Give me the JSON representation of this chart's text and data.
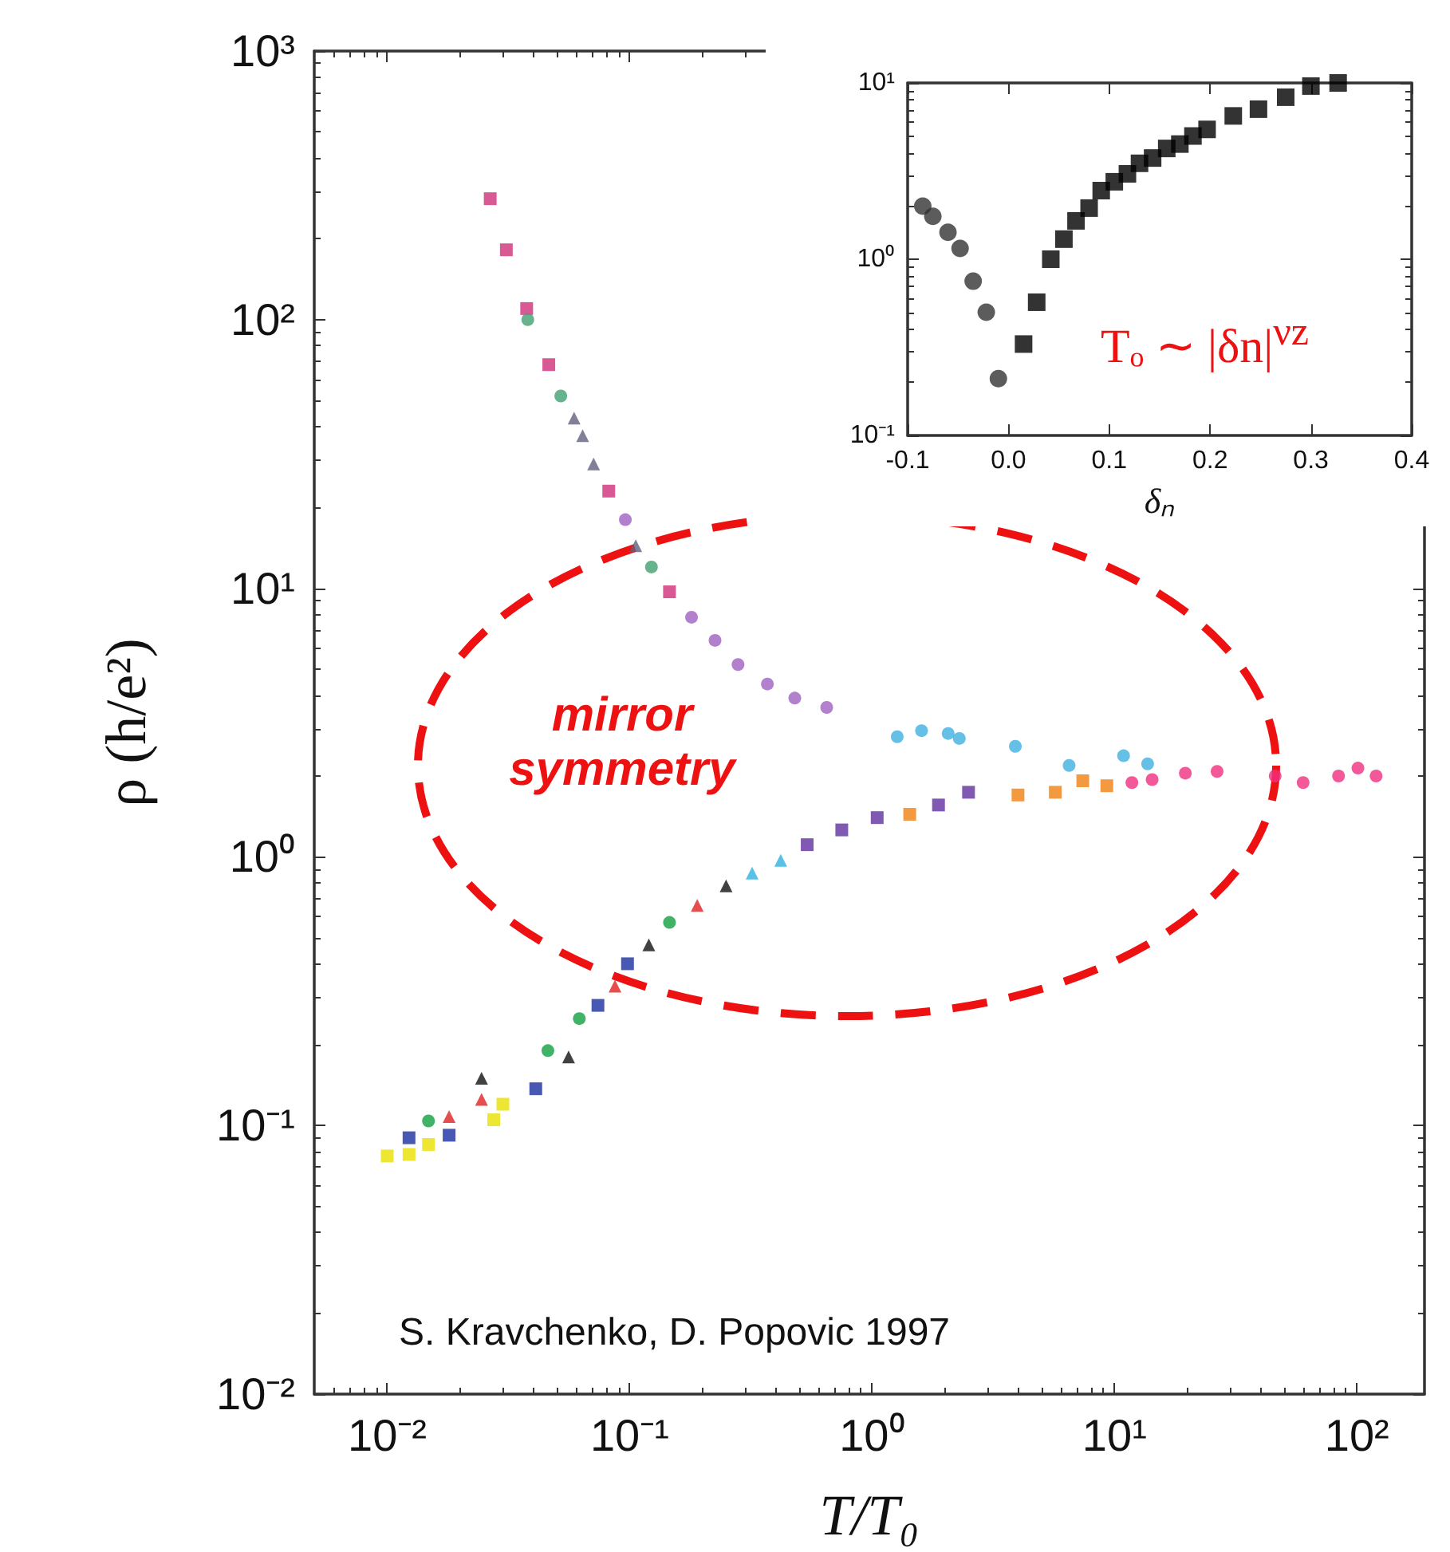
{
  "chart_data": [
    {
      "type": "scatter",
      "xlabel": "T/T₀",
      "ylabel": "ρ (h/e²)",
      "log": "xy",
      "xlim": [
        0.005,
        190
      ],
      "ylim": [
        0.01,
        1000
      ],
      "xticks": [
        {
          "value": 0.01,
          "label": "10⁻²"
        },
        {
          "value": 0.1,
          "label": "10⁻¹"
        },
        {
          "value": 1,
          "label": "10⁰"
        },
        {
          "value": 10,
          "label": "10¹"
        },
        {
          "value": 100,
          "label": "10²"
        }
      ],
      "yticks": [
        {
          "value": 0.01,
          "label": "10⁻²"
        },
        {
          "value": 0.1,
          "label": "10⁻¹"
        },
        {
          "value": 1,
          "label": "10⁰"
        },
        {
          "value": 10,
          "label": "10¹"
        },
        {
          "value": 100,
          "label": "10²"
        },
        {
          "value": 1000,
          "label": "10³"
        }
      ],
      "annotations": [
        "mirror symmetry",
        "S. Kravchenko, D. Popovic 1997"
      ],
      "series": [
        {
          "color": "#d0307a",
          "marker": "square",
          "x": [
            0.0266,
            0.031,
            0.0376,
            0.0464,
            0.082,
            0.146
          ],
          "values": [
            282,
            182,
            110,
            68,
            23,
            9.7
          ]
        },
        {
          "color": "#40a070",
          "marker": "circle",
          "x": [
            0.038,
            0.052,
            0.123
          ],
          "values": [
            100,
            52,
            12
          ]
        },
        {
          "color": "#606080",
          "marker": "triangle",
          "x": [
            0.059,
            0.064,
            0.071,
            0.106
          ],
          "values": [
            43,
            37,
            29,
            14.4
          ]
        },
        {
          "color": "#a060c0",
          "marker": "circle",
          "x": [
            0.096,
            0.18,
            0.225,
            0.28,
            0.37,
            0.48,
            0.65
          ],
          "values": [
            18,
            7.8,
            6.4,
            5.2,
            4.4,
            3.9,
            3.6
          ]
        },
        {
          "color": "#40b0e0",
          "marker": "circle",
          "x": [
            1.27,
            1.6,
            2.06,
            2.29,
            3.9,
            6.5,
            10.9,
            13.7
          ],
          "values": [
            2.8,
            2.95,
            2.88,
            2.76,
            2.58,
            2.19,
            2.38,
            2.22
          ]
        },
        {
          "color": "#e8e000",
          "marker": "square",
          "x": [
            0.01,
            0.0123,
            0.0148,
            0.0275,
            0.03
          ],
          "values": [
            0.077,
            0.078,
            0.085,
            0.105,
            0.12
          ]
        },
        {
          "color": "#1a2fa0",
          "marker": "square",
          "x": [
            0.0123,
            0.018,
            0.041,
            0.074,
            0.098
          ],
          "values": [
            0.09,
            0.092,
            0.137,
            0.28,
            0.4
          ]
        },
        {
          "color": "#10a040",
          "marker": "circle",
          "x": [
            0.0148,
            0.046,
            0.062,
            0.146
          ],
          "values": [
            0.104,
            0.19,
            0.25,
            0.57
          ]
        },
        {
          "color": "#e02020",
          "marker": "triangle",
          "x": [
            0.018,
            0.0245,
            0.087,
            0.19
          ],
          "values": [
            0.108,
            0.125,
            0.33,
            0.66
          ]
        },
        {
          "color": "#111111",
          "marker": "triangle",
          "x": [
            0.0245,
            0.056,
            0.12,
            0.25
          ],
          "values": [
            0.15,
            0.18,
            0.47,
            0.78
          ]
        },
        {
          "color": "#30b0e0",
          "marker": "triangle",
          "x": [
            0.32,
            0.42
          ],
          "values": [
            0.87,
            0.97
          ]
        },
        {
          "color": "#6030a0",
          "marker": "square",
          "x": [
            0.54,
            0.75,
            1.05,
            1.88,
            2.5
          ],
          "values": [
            1.11,
            1.26,
            1.4,
            1.56,
            1.74
          ]
        },
        {
          "color": "#f08010",
          "marker": "square",
          "x": [
            1.43,
            4.0,
            5.7,
            7.4,
            9.3
          ],
          "values": [
            1.44,
            1.7,
            1.74,
            1.92,
            1.84
          ]
        },
        {
          "color": "#f03080",
          "marker": "circle",
          "x": [
            11.8,
            14.3,
            19.6,
            26.5,
            46,
            60,
            84,
            101,
            120
          ],
          "values": [
            1.89,
            1.94,
            2.05,
            2.08,
            2.0,
            1.89,
            2.0,
            2.14,
            2.0
          ]
        }
      ]
    },
    {
      "type": "scatter",
      "xlabel": "δₙ",
      "log": "y",
      "xlim": [
        -0.1,
        0.4
      ],
      "ylim": [
        0.1,
        10
      ],
      "xticks": [
        -0.1,
        {
          "value": 0,
          "label": "0.0"
        },
        0.1,
        0.2,
        0.3,
        0.4
      ],
      "yticks": [
        {
          "value": 0.1,
          "label": "10⁻¹"
        },
        {
          "value": 1,
          "label": "10⁰"
        },
        {
          "value": 10,
          "label": "10¹"
        }
      ],
      "annotations": [
        "Tₒ ∼ |δn|$^{νz}$"
      ],
      "series": [
        {
          "color": "#333333",
          "marker": "circle",
          "x": [
            -0.085,
            -0.075,
            -0.06,
            -0.048,
            -0.035,
            -0.022,
            -0.01
          ],
          "values": [
            2.0,
            1.75,
            1.42,
            1.15,
            0.75,
            0.5,
            0.21
          ]
        },
        {
          "color": "#000000",
          "marker": "square",
          "x": [
            0.015,
            0.028,
            0.042,
            0.055,
            0.067,
            0.08,
            0.092,
            0.105,
            0.118,
            0.13,
            0.143,
            0.157,
            0.17,
            0.183,
            0.197,
            0.223,
            0.248,
            0.275,
            0.3,
            0.327
          ],
          "values": [
            0.33,
            0.57,
            1.0,
            1.3,
            1.65,
            1.95,
            2.45,
            2.75,
            3.05,
            3.5,
            3.75,
            4.25,
            4.5,
            5.0,
            5.45,
            6.5,
            7.1,
            8.3,
            9.6,
            10.0
          ]
        }
      ]
    }
  ]
}
